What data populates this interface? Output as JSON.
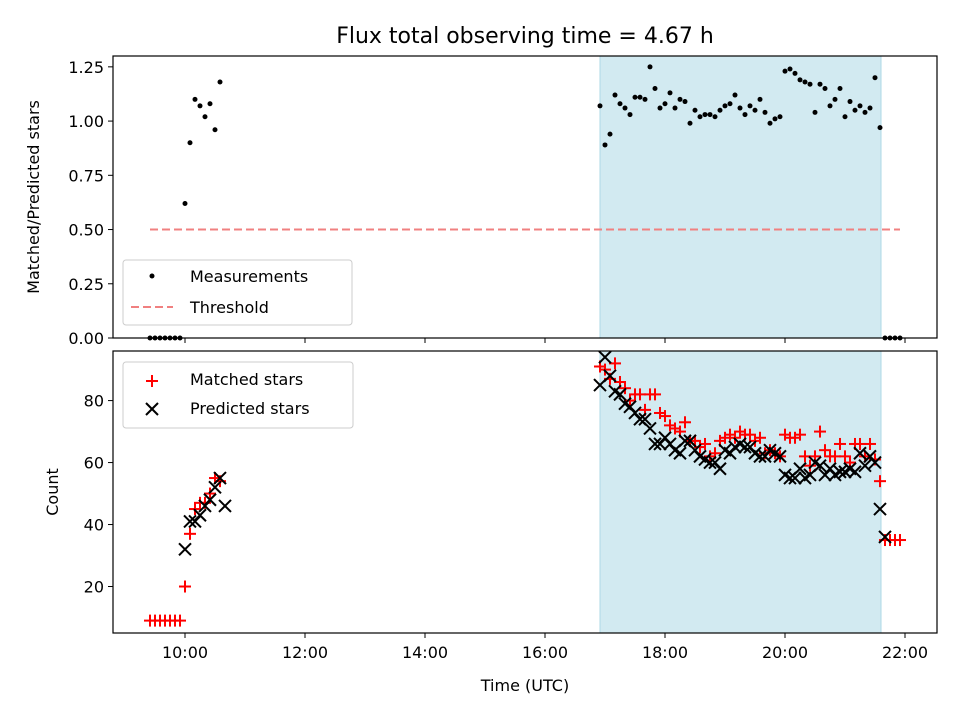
{
  "title": "Flux total observing time = 4.67 h",
  "xlabel": "Time (UTC)",
  "colors": {
    "measurement": "#000000",
    "threshold": "#f08080",
    "matched": "#ff0000",
    "predicted": "#000000",
    "span": "#add8e6"
  },
  "chart_data": [
    {
      "type": "scatter",
      "ylabel": "Matched/Predicted stars",
      "ylim": [
        0,
        1.3
      ],
      "xlim": [
        "08:48",
        "22:32"
      ],
      "x_ticks": [
        "10:00",
        "12:00",
        "14:00",
        "16:00",
        "18:00",
        "20:00",
        "22:00"
      ],
      "y_ticks": [
        "0.00",
        "0.25",
        "0.50",
        "0.75",
        "1.00",
        "1.25"
      ],
      "highlight_span": [
        "16:55",
        "21:36"
      ],
      "legend": {
        "placement": "lower-left",
        "entries": [
          "Measurements",
          "Threshold"
        ]
      },
      "threshold": {
        "name": "Threshold",
        "y": 0.5,
        "x_range": [
          "09:25",
          "21:55"
        ]
      },
      "measurements": {
        "name": "Measurements",
        "points": [
          [
            "09:25",
            0.0
          ],
          [
            "09:30",
            0.0
          ],
          [
            "09:35",
            0.0
          ],
          [
            "09:40",
            0.0
          ],
          [
            "09:45",
            0.0
          ],
          [
            "09:50",
            0.0
          ],
          [
            "09:55",
            0.0
          ],
          [
            "10:00",
            0.62
          ],
          [
            "10:05",
            0.9
          ],
          [
            "10:10",
            1.1
          ],
          [
            "10:15",
            1.07
          ],
          [
            "10:20",
            1.02
          ],
          [
            "10:25",
            1.08
          ],
          [
            "10:30",
            0.96
          ],
          [
            "10:35",
            1.18
          ],
          [
            "16:55",
            1.07
          ],
          [
            "17:00",
            0.89
          ],
          [
            "17:05",
            0.94
          ],
          [
            "17:10",
            1.12
          ],
          [
            "17:15",
            1.08
          ],
          [
            "17:20",
            1.06
          ],
          [
            "17:25",
            1.03
          ],
          [
            "17:30",
            1.11
          ],
          [
            "17:35",
            1.11
          ],
          [
            "17:40",
            1.1
          ],
          [
            "17:45",
            1.25
          ],
          [
            "17:50",
            1.15
          ],
          [
            "17:55",
            1.06
          ],
          [
            "18:00",
            1.08
          ],
          [
            "18:05",
            1.13
          ],
          [
            "18:10",
            1.06
          ],
          [
            "18:15",
            1.1
          ],
          [
            "18:20",
            1.09
          ],
          [
            "18:25",
            0.99
          ],
          [
            "18:30",
            1.05
          ],
          [
            "18:35",
            1.02
          ],
          [
            "18:40",
            1.03
          ],
          [
            "18:45",
            1.03
          ],
          [
            "18:50",
            1.02
          ],
          [
            "18:55",
            1.05
          ],
          [
            "19:00",
            1.07
          ],
          [
            "19:05",
            1.08
          ],
          [
            "19:10",
            1.12
          ],
          [
            "19:15",
            1.06
          ],
          [
            "19:20",
            1.03
          ],
          [
            "19:25",
            1.07
          ],
          [
            "19:30",
            1.05
          ],
          [
            "19:35",
            1.1
          ],
          [
            "19:40",
            1.04
          ],
          [
            "19:45",
            0.99
          ],
          [
            "19:50",
            1.01
          ],
          [
            "19:55",
            1.02
          ],
          [
            "20:00",
            1.23
          ],
          [
            "20:05",
            1.24
          ],
          [
            "20:10",
            1.22
          ],
          [
            "20:15",
            1.19
          ],
          [
            "20:20",
            1.18
          ],
          [
            "20:25",
            1.17
          ],
          [
            "20:30",
            1.04
          ],
          [
            "20:35",
            1.17
          ],
          [
            "20:40",
            1.15
          ],
          [
            "20:45",
            1.07
          ],
          [
            "20:50",
            1.1
          ],
          [
            "20:55",
            1.15
          ],
          [
            "21:00",
            1.02
          ],
          [
            "21:05",
            1.09
          ],
          [
            "21:10",
            1.05
          ],
          [
            "21:15",
            1.07
          ],
          [
            "21:20",
            1.04
          ],
          [
            "21:25",
            1.06
          ],
          [
            "21:30",
            1.2
          ],
          [
            "21:35",
            0.97
          ],
          [
            "21:40",
            0.0
          ],
          [
            "21:45",
            0.0
          ],
          [
            "21:50",
            0.0
          ],
          [
            "21:55",
            0.0
          ]
        ]
      }
    },
    {
      "type": "scatter",
      "ylabel": "Count",
      "ylim": [
        5,
        96
      ],
      "xlim": [
        "08:48",
        "22:32"
      ],
      "x_ticks": [
        "10:00",
        "12:00",
        "14:00",
        "16:00",
        "18:00",
        "20:00",
        "22:00"
      ],
      "y_ticks": [
        "20",
        "40",
        "60",
        "80"
      ],
      "highlight_span": [
        "16:55",
        "21:36"
      ],
      "legend": {
        "placement": "upper-left",
        "entries": [
          "Matched stars",
          "Predicted stars"
        ]
      },
      "series": [
        {
          "name": "Matched stars",
          "marker": "plus",
          "points": [
            [
              "09:25",
              9
            ],
            [
              "09:30",
              9
            ],
            [
              "09:35",
              9
            ],
            [
              "09:40",
              9
            ],
            [
              "09:45",
              9
            ],
            [
              "09:50",
              9
            ],
            [
              "09:55",
              9
            ],
            [
              "10:00",
              20
            ],
            [
              "10:05",
              37
            ],
            [
              "10:10",
              45
            ],
            [
              "10:15",
              47
            ],
            [
              "10:20",
              47
            ],
            [
              "10:25",
              50
            ],
            [
              "10:30",
              55
            ],
            [
              "10:35",
              54
            ],
            [
              "16:55",
              91
            ],
            [
              "17:00",
              90
            ],
            [
              "17:05",
              87
            ],
            [
              "17:10",
              92
            ],
            [
              "17:15",
              86
            ],
            [
              "17:20",
              84
            ],
            [
              "17:25",
              80
            ],
            [
              "17:30",
              82
            ],
            [
              "17:35",
              82
            ],
            [
              "17:40",
              77
            ],
            [
              "17:45",
              82
            ],
            [
              "17:50",
              82
            ],
            [
              "17:55",
              76
            ],
            [
              "18:00",
              75
            ],
            [
              "18:05",
              72
            ],
            [
              "18:10",
              71
            ],
            [
              "18:15",
              70
            ],
            [
              "18:20",
              73
            ],
            [
              "18:25",
              67
            ],
            [
              "18:30",
              67
            ],
            [
              "18:35",
              65
            ],
            [
              "18:40",
              66
            ],
            [
              "18:45",
              62
            ],
            [
              "18:50",
              63
            ],
            [
              "18:55",
              67
            ],
            [
              "19:00",
              68
            ],
            [
              "19:05",
              69
            ],
            [
              "19:10",
              68
            ],
            [
              "19:15",
              70
            ],
            [
              "19:20",
              69
            ],
            [
              "19:25",
              69
            ],
            [
              "19:30",
              67
            ],
            [
              "19:35",
              68
            ],
            [
              "19:40",
              63
            ],
            [
              "19:45",
              64
            ],
            [
              "19:50",
              63
            ],
            [
              "19:55",
              62
            ],
            [
              "20:00",
              69
            ],
            [
              "20:05",
              68
            ],
            [
              "20:10",
              68
            ],
            [
              "20:15",
              69
            ],
            [
              "20:20",
              62
            ],
            [
              "20:25",
              59
            ],
            [
              "20:30",
              62
            ],
            [
              "20:35",
              70
            ],
            [
              "20:40",
              64
            ],
            [
              "20:45",
              62
            ],
            [
              "20:50",
              62
            ],
            [
              "20:55",
              66
            ],
            [
              "21:00",
              62
            ],
            [
              "21:05",
              60
            ],
            [
              "21:10",
              66
            ],
            [
              "21:15",
              66
            ],
            [
              "21:20",
              62
            ],
            [
              "21:25",
              66
            ],
            [
              "21:30",
              61
            ],
            [
              "21:35",
              54
            ],
            [
              "21:40",
              35
            ],
            [
              "21:45",
              35
            ],
            [
              "21:50",
              35
            ],
            [
              "21:55",
              35
            ]
          ]
        },
        {
          "name": "Predicted stars",
          "marker": "x",
          "points": [
            [
              "10:00",
              32
            ],
            [
              "10:05",
              41
            ],
            [
              "10:10",
              41
            ],
            [
              "10:15",
              43
            ],
            [
              "10:20",
              46
            ],
            [
              "10:25",
              48
            ],
            [
              "10:30",
              52
            ],
            [
              "10:35",
              55
            ],
            [
              "10:40",
              46
            ],
            [
              "16:55",
              85
            ],
            [
              "17:00",
              94
            ],
            [
              "17:05",
              88
            ],
            [
              "17:10",
              83
            ],
            [
              "17:15",
              82
            ],
            [
              "17:20",
              79
            ],
            [
              "17:25",
              78
            ],
            [
              "17:30",
              76
            ],
            [
              "17:35",
              74
            ],
            [
              "17:40",
              74
            ],
            [
              "17:45",
              71
            ],
            [
              "17:50",
              66
            ],
            [
              "17:55",
              66
            ],
            [
              "18:00",
              68
            ],
            [
              "18:05",
              66
            ],
            [
              "18:10",
              64
            ],
            [
              "18:15",
              63
            ],
            [
              "18:20",
              67
            ],
            [
              "18:25",
              67
            ],
            [
              "18:30",
              64
            ],
            [
              "18:35",
              62
            ],
            [
              "18:40",
              61
            ],
            [
              "18:45",
              60
            ],
            [
              "18:50",
              60
            ],
            [
              "18:55",
              58
            ],
            [
              "19:00",
              64
            ],
            [
              "19:05",
              63
            ],
            [
              "19:10",
              65
            ],
            [
              "19:15",
              66
            ],
            [
              "19:20",
              65
            ],
            [
              "19:25",
              65
            ],
            [
              "19:30",
              63
            ],
            [
              "19:35",
              62
            ],
            [
              "19:40",
              62
            ],
            [
              "19:45",
              64
            ],
            [
              "19:50",
              63
            ],
            [
              "19:55",
              62
            ],
            [
              "20:00",
              56
            ],
            [
              "20:05",
              55
            ],
            [
              "20:10",
              55
            ],
            [
              "20:15",
              58
            ],
            [
              "20:20",
              55
            ],
            [
              "20:25",
              56
            ],
            [
              "20:30",
              60
            ],
            [
              "20:35",
              59
            ],
            [
              "20:40",
              56
            ],
            [
              "20:45",
              58
            ],
            [
              "20:50",
              56
            ],
            [
              "20:55",
              57
            ],
            [
              "21:00",
              57
            ],
            [
              "21:05",
              58
            ],
            [
              "21:10",
              57
            ],
            [
              "21:15",
              63
            ],
            [
              "21:20",
              59
            ],
            [
              "21:25",
              62
            ],
            [
              "21:30",
              60
            ],
            [
              "21:35",
              45
            ],
            [
              "21:40",
              36
            ]
          ]
        }
      ]
    }
  ]
}
